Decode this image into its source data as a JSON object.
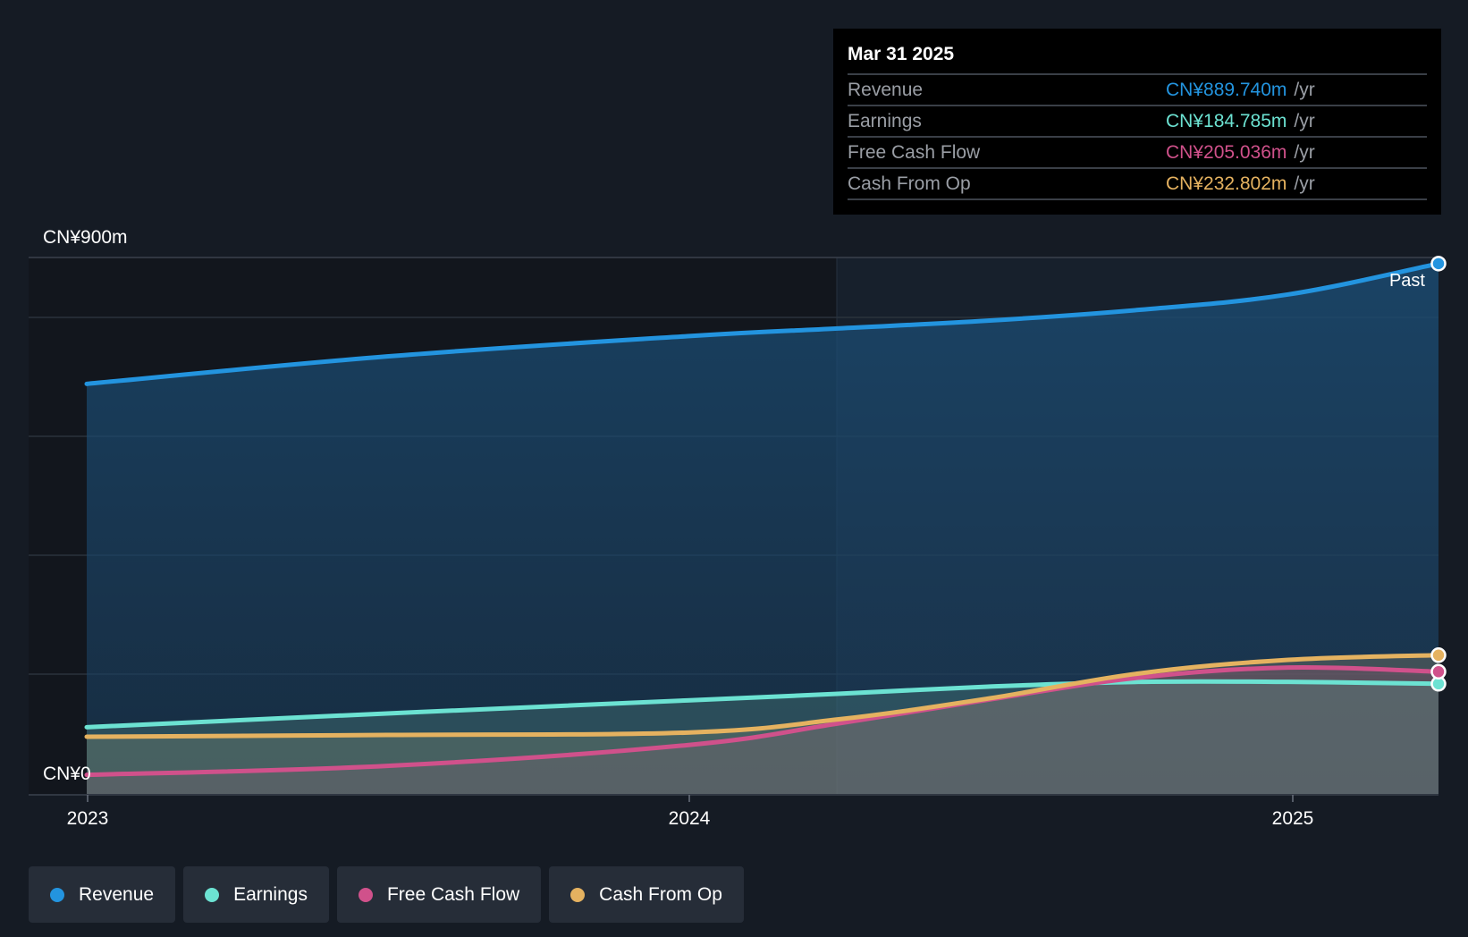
{
  "chart_data": {
    "type": "area",
    "y_unit_label_top": "CN¥900m",
    "y_unit_label_bottom": "CN¥0",
    "ylim": [
      0,
      900
    ],
    "x_ticks": [
      "2023",
      "2024",
      "2025"
    ],
    "past_label": "Past",
    "series": [
      {
        "key": "revenue",
        "name": "Revenue",
        "color": "#2394df",
        "points": [
          [
            2023.0,
            688
          ],
          [
            2023.5,
            734
          ],
          [
            2024.0,
            768
          ],
          [
            2024.25,
            781
          ],
          [
            2024.5,
            794
          ],
          [
            2024.75,
            812
          ],
          [
            2025.0,
            838
          ],
          [
            2025.25,
            889.74
          ]
        ]
      },
      {
        "key": "earnings",
        "name": "Earnings",
        "color": "#6ce2d2",
        "points": [
          [
            2023.0,
            112
          ],
          [
            2023.5,
            135
          ],
          [
            2024.0,
            157
          ],
          [
            2024.25,
            168
          ],
          [
            2024.5,
            180
          ],
          [
            2024.75,
            188
          ],
          [
            2025.0,
            188
          ],
          [
            2025.25,
            184.785
          ]
        ]
      },
      {
        "key": "fcf",
        "name": "Free Cash Flow",
        "color": "#d0518b",
        "points": [
          [
            2023.0,
            32
          ],
          [
            2023.5,
            47
          ],
          [
            2024.0,
            82
          ],
          [
            2024.25,
            118
          ],
          [
            2024.5,
            158
          ],
          [
            2024.75,
            195
          ],
          [
            2025.0,
            212
          ],
          [
            2025.25,
            205.036
          ]
        ]
      },
      {
        "key": "cfo",
        "name": "Cash From Op",
        "color": "#e5b260",
        "points": [
          [
            2023.0,
            96
          ],
          [
            2023.5,
            99
          ],
          [
            2024.0,
            103
          ],
          [
            2024.25,
            125
          ],
          [
            2024.5,
            160
          ],
          [
            2024.75,
            202
          ],
          [
            2025.0,
            225
          ],
          [
            2025.25,
            232.802
          ]
        ]
      }
    ]
  },
  "tooltip": {
    "date": "Mar 31 2025",
    "rows": [
      {
        "label": "Revenue",
        "value": "CN¥889.740m",
        "unit": "/yr",
        "color": "#2394df"
      },
      {
        "label": "Earnings",
        "value": "CN¥184.785m",
        "unit": "/yr",
        "color": "#6ce2d2"
      },
      {
        "label": "Free Cash Flow",
        "value": "CN¥205.036m",
        "unit": "/yr",
        "color": "#d0518b"
      },
      {
        "label": "Cash From Op",
        "value": "CN¥232.802m",
        "unit": "/yr",
        "color": "#e5b260"
      }
    ]
  },
  "legend": [
    {
      "label": "Revenue",
      "color": "#2394df"
    },
    {
      "label": "Earnings",
      "color": "#6ce2d2"
    },
    {
      "label": "Free Cash Flow",
      "color": "#d0518b"
    },
    {
      "label": "Cash From Op",
      "color": "#e5b260"
    }
  ]
}
